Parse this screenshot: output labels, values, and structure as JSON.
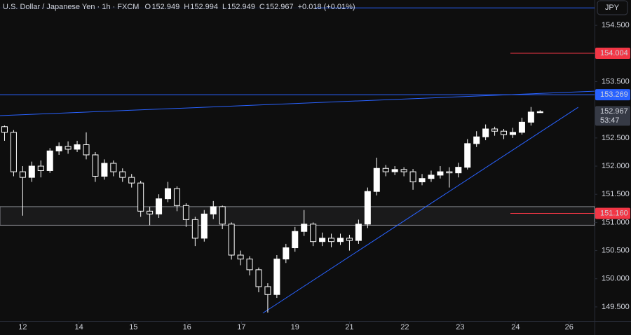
{
  "chart_data": {
    "type": "candlestick",
    "title": "U.S. Dollar / Japanese Yen · 1h · FXCM",
    "legend_ohlc": [
      {
        "label": "O",
        "value": "152.949"
      },
      {
        "label": "H",
        "value": "152.994"
      },
      {
        "label": "L",
        "value": "152.949"
      },
      {
        "label": "C",
        "value": "152.967"
      }
    ],
    "change": "+0.018 (+0.01%)",
    "currency": "JPY",
    "countdown": "53:47",
    "up_color": "#ffffff",
    "down_color": "#0e0e0e",
    "x": [
      0,
      1,
      2,
      3,
      4,
      5,
      6,
      7,
      8,
      9,
      10,
      11,
      12,
      13,
      14,
      15,
      16,
      17,
      18,
      19,
      20,
      21,
      22,
      23,
      24,
      25,
      26,
      27,
      28,
      29,
      30,
      31,
      32,
      33,
      34,
      35,
      36,
      37,
      38,
      39,
      40,
      41,
      42,
      43,
      44,
      45,
      46,
      47,
      48,
      49,
      50,
      51,
      52,
      53,
      54,
      55,
      56,
      57,
      58,
      59
    ],
    "open": [
      152.7,
      152.6,
      151.9,
      151.8,
      152.0,
      151.92,
      152.27,
      152.35,
      152.3,
      152.38,
      152.2,
      151.82,
      152.05,
      151.9,
      151.8,
      151.7,
      151.2,
      151.15,
      151.42,
      151.6,
      151.3,
      151.05,
      150.72,
      151.15,
      151.28,
      150.97,
      150.42,
      150.35,
      150.16,
      149.86,
      149.72,
      150.35,
      150.55,
      150.84,
      150.97,
      150.66,
      150.72,
      150.66,
      150.72,
      150.68,
      150.97,
      151.55,
      151.96,
      151.9,
      151.94,
      151.9,
      151.72,
      151.78,
      151.84,
      151.9,
      151.88,
      151.98,
      152.4,
      152.52,
      152.66,
      152.62,
      152.56,
      152.6,
      152.78,
      152.949
    ],
    "high": [
      152.72,
      152.64,
      152.0,
      152.08,
      152.1,
      152.32,
      152.42,
      152.44,
      152.45,
      152.6,
      152.25,
      152.12,
      152.1,
      151.96,
      151.86,
      151.74,
      151.28,
      151.5,
      151.72,
      151.64,
      151.34,
      151.1,
      151.22,
      151.38,
      151.3,
      151.0,
      150.5,
      150.4,
      150.2,
      149.92,
      150.42,
      150.62,
      150.92,
      151.22,
      151.0,
      150.82,
      150.8,
      150.8,
      150.78,
      151.05,
      151.62,
      152.15,
      152.02,
      152.0,
      151.98,
      151.95,
      151.86,
      151.92,
      152.0,
      151.98,
      152.06,
      152.48,
      152.62,
      152.74,
      152.7,
      152.66,
      152.68,
      152.86,
      153.05,
      152.994
    ],
    "low": [
      152.45,
      151.82,
      151.12,
      151.72,
      151.8,
      151.88,
      152.2,
      152.22,
      152.25,
      152.12,
      151.72,
      151.76,
      151.82,
      151.72,
      151.62,
      151.1,
      150.95,
      151.08,
      151.36,
      151.2,
      150.92,
      150.58,
      150.66,
      151.06,
      150.88,
      150.34,
      150.24,
      150.06,
      149.76,
      149.4,
      149.66,
      150.28,
      150.48,
      150.76,
      150.58,
      150.58,
      150.56,
      150.6,
      150.5,
      150.62,
      150.9,
      151.48,
      151.82,
      151.84,
      151.82,
      151.58,
      151.66,
      151.72,
      151.78,
      151.62,
      151.8,
      151.94,
      152.34,
      152.46,
      152.54,
      152.48,
      152.5,
      152.56,
      152.72,
      152.949
    ],
    "close": [
      152.6,
      151.9,
      151.8,
      152.0,
      151.92,
      152.27,
      152.35,
      152.3,
      152.38,
      152.2,
      151.82,
      152.05,
      151.9,
      151.8,
      151.7,
      151.2,
      151.15,
      151.42,
      151.6,
      151.3,
      151.05,
      150.72,
      151.15,
      151.28,
      150.97,
      150.42,
      150.35,
      150.16,
      149.86,
      149.72,
      150.35,
      150.55,
      150.84,
      150.97,
      150.66,
      150.72,
      150.66,
      150.72,
      150.68,
      150.97,
      151.55,
      151.96,
      151.9,
      151.94,
      151.9,
      151.72,
      151.78,
      151.84,
      151.9,
      151.88,
      151.98,
      152.4,
      152.52,
      152.66,
      152.62,
      152.56,
      152.6,
      152.78,
      152.96,
      152.967
    ],
    "xlim": [
      -0.5,
      65
    ],
    "ylim": [
      149.25,
      154.95
    ],
    "xticks": [
      {
        "value": 2,
        "label": "12"
      },
      {
        "value": 8.2,
        "label": "14"
      },
      {
        "value": 14.2,
        "label": "15"
      },
      {
        "value": 20.1,
        "label": "16"
      },
      {
        "value": 26.1,
        "label": "17"
      },
      {
        "value": 32,
        "label": "19"
      },
      {
        "value": 38,
        "label": "21"
      },
      {
        "value": 44.1,
        "label": "22"
      },
      {
        "value": 50.2,
        "label": "23"
      },
      {
        "value": 56.3,
        "label": "24"
      },
      {
        "value": 62.2,
        "label": "26"
      }
    ],
    "yticks": [
      {
        "value": 149.5,
        "label": "149.500"
      },
      {
        "value": 150,
        "label": "150.000"
      },
      {
        "value": 150.5,
        "label": "150.500"
      },
      {
        "value": 151,
        "label": "151.000"
      },
      {
        "value": 151.5,
        "label": "151.500"
      },
      {
        "value": 152,
        "label": "152.000"
      },
      {
        "value": 152.5,
        "label": "152.500"
      },
      {
        "value": 153,
        "label": "153.000"
      },
      {
        "value": 153.5,
        "label": "153.500"
      },
      {
        "value": 154,
        "label": "154.000"
      },
      {
        "value": 154.5,
        "label": "154.500"
      }
    ],
    "zone": {
      "low": 150.95,
      "high": 151.28,
      "color": "#b2b5be"
    },
    "hlines": [
      {
        "value": 154.81,
        "color": "#2962ff"
      }
    ],
    "price_tags": [
      {
        "value": 154.004,
        "color": "#f23645"
      },
      {
        "value": 153.269,
        "color": "#2962ff"
      },
      {
        "value": 151.16,
        "label": "151.160",
        "color": "#f23645"
      }
    ],
    "last_price": {
      "value": 152.967,
      "color": "#363a45"
    },
    "trendlines": [
      {
        "color": "#2962ff",
        "x": [
          -0.5,
          65
        ],
        "y": [
          152.896,
          153.331
        ]
      },
      {
        "color": "#2962ff",
        "x": [
          28.46,
          63.2
        ],
        "y": [
          149.39,
          153.045
        ]
      }
    ]
  }
}
